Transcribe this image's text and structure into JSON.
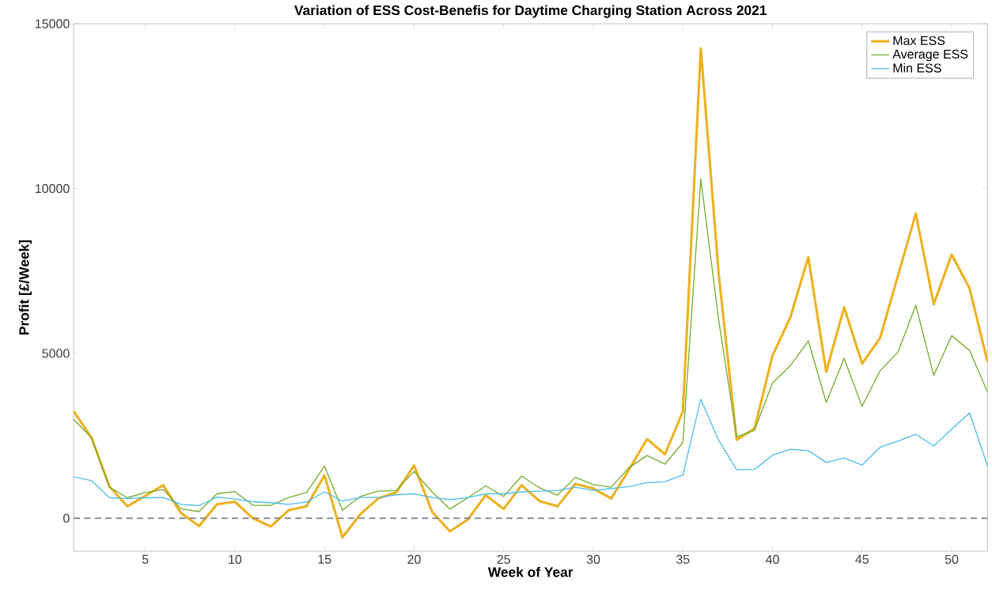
{
  "chart_data": {
    "type": "line",
    "title": "Variation of ESS Cost-Benefis for Daytime Charging Station Across 2021",
    "xlabel": "Week of Year",
    "ylabel": "Profit [£/Week]",
    "x": [
      1,
      2,
      3,
      4,
      5,
      6,
      7,
      8,
      9,
      10,
      11,
      12,
      13,
      14,
      15,
      16,
      17,
      18,
      19,
      20,
      21,
      22,
      23,
      24,
      25,
      26,
      27,
      28,
      29,
      30,
      31,
      32,
      33,
      34,
      35,
      36,
      37,
      38,
      39,
      40,
      41,
      42,
      43,
      44,
      45,
      46,
      47,
      48,
      49,
      50,
      51,
      52
    ],
    "series": [
      {
        "name": "Max ESS",
        "color": "#edb120",
        "values": [
          3250,
          2440,
          960,
          360,
          680,
          1000,
          150,
          -240,
          420,
          500,
          0,
          -250,
          240,
          360,
          1300,
          -580,
          120,
          600,
          780,
          1600,
          200,
          -400,
          -40,
          700,
          280,
          1000,
          520,
          360,
          1040,
          900,
          600,
          1480,
          2400,
          1940,
          3240,
          14250,
          7400,
          2380,
          2720,
          4930,
          6100,
          7920,
          4440,
          6400,
          4690,
          5460,
          7350,
          9240,
          6490,
          8000,
          6970,
          4740
        ]
      },
      {
        "name": "Average ESS",
        "color": "#77ac30",
        "values": [
          3000,
          2440,
          940,
          620,
          780,
          870,
          280,
          200,
          740,
          810,
          390,
          390,
          630,
          780,
          1580,
          240,
          660,
          820,
          840,
          1420,
          800,
          280,
          620,
          980,
          660,
          1280,
          920,
          700,
          1240,
          1020,
          940,
          1540,
          1900,
          1640,
          2300,
          10290,
          6000,
          2470,
          2670,
          4100,
          4630,
          5380,
          3510,
          4850,
          3390,
          4470,
          5030,
          6460,
          4330,
          5540,
          5090,
          3830
        ]
      },
      {
        "name": "Min ESS",
        "color": "#4dbeee",
        "values": [
          1260,
          1140,
          620,
          600,
          620,
          630,
          420,
          380,
          640,
          580,
          500,
          470,
          420,
          490,
          800,
          520,
          630,
          630,
          710,
          740,
          630,
          560,
          630,
          740,
          740,
          800,
          820,
          840,
          940,
          840,
          900,
          960,
          1080,
          1110,
          1310,
          3610,
          2360,
          1470,
          1480,
          1910,
          2090,
          2050,
          1690,
          1830,
          1610,
          2150,
          2340,
          2550,
          2190,
          2700,
          3200,
          1580
        ]
      }
    ],
    "xlim": [
      1,
      52
    ],
    "ylim": [
      -1000,
      15000
    ],
    "xticks": [
      5,
      10,
      15,
      20,
      25,
      30,
      35,
      40,
      45,
      50
    ],
    "yticks": [
      0,
      5000,
      10000,
      15000
    ],
    "ref_lines": [
      {
        "axis": "y",
        "value": 0,
        "color": "#7f7f7f",
        "line_style": "dashed"
      }
    ],
    "grid": false,
    "legend": "top right",
    "marker": "none",
    "line_style": "solid"
  }
}
